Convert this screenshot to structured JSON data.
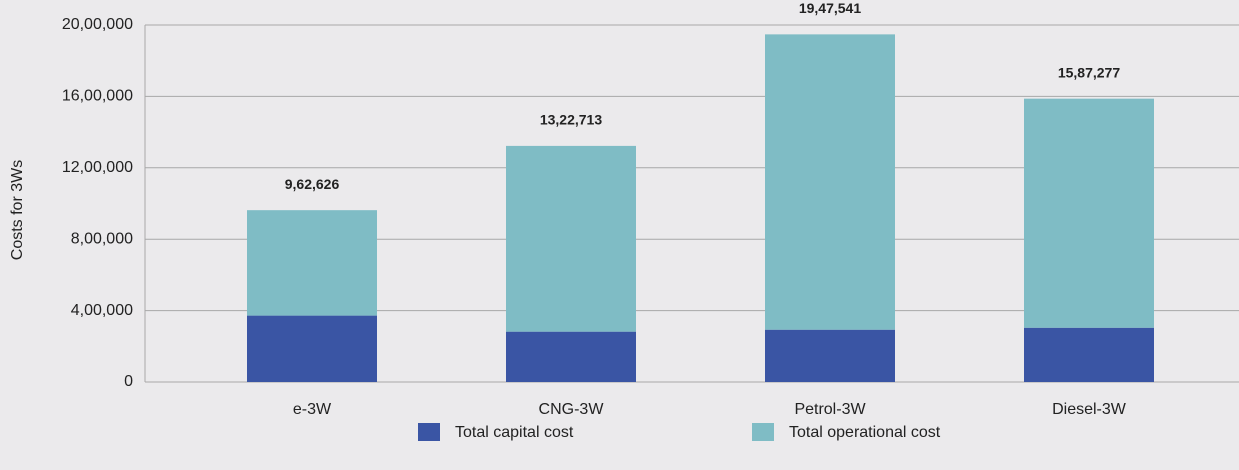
{
  "chart_data": {
    "type": "stacked_bar",
    "categories": [
      "e-3W",
      "CNG-3W",
      "Petrol-3W",
      "Diesel-3W"
    ],
    "series": [
      {
        "name": "Total capital cost",
        "color": "#3a55a4",
        "values": [
          372000,
          282000,
          293000,
          304000
        ]
      },
      {
        "name": "Total operational cost",
        "color": "#7fbcc5",
        "values": [
          590626,
          1040713,
          1654541,
          1283277
        ]
      }
    ],
    "totals": [
      962626,
      1322713,
      1947541,
      1587277
    ],
    "total_labels": [
      "9,62,626",
      "13,22,713",
      "19,47,541",
      "15,87,277"
    ],
    "ylabel": "Costs for 3Ws",
    "ylim": [
      0,
      2000000
    ],
    "yticks": [
      0,
      {
        "value": 400000,
        "label": "4,00,000"
      },
      {
        "value": 800000,
        "label": "8,00,000"
      },
      {
        "value": 1200000,
        "label": "12,00,000"
      },
      {
        "value": 1600000,
        "label": "16,00,000"
      },
      {
        "value": 2000000,
        "label": "20,00,000"
      }
    ],
    "grid": true
  }
}
